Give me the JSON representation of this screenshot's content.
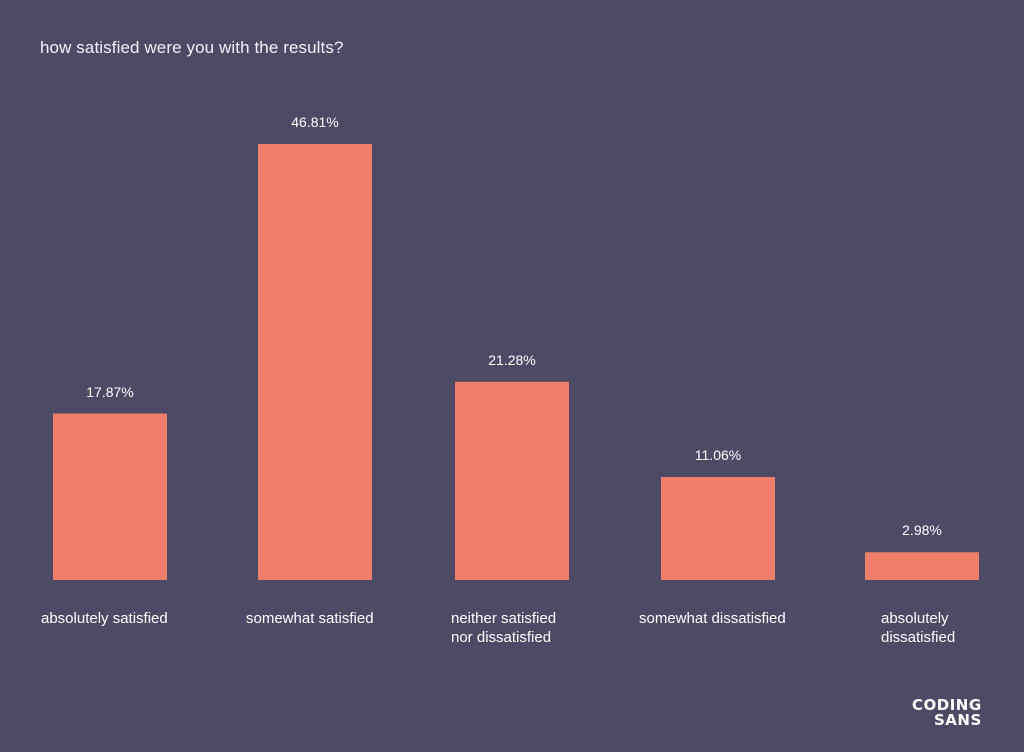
{
  "chart_data": {
    "type": "bar",
    "title": "how satisfied were you with the results?",
    "categories": [
      "absolutely satisfied",
      "somewhat satisfied",
      "neither satisfied\nnor dissatisfied",
      "somewhat dissatisfied",
      "absolutely\ndissatisfied"
    ],
    "values": [
      17.87,
      46.81,
      21.28,
      11.06,
      2.98
    ],
    "value_labels": [
      "17.87%",
      "46.81%",
      "21.28%",
      "11.06%",
      "2.98%"
    ],
    "xlabel": "",
    "ylabel": "",
    "ylim": [
      0,
      46.81
    ],
    "grid": false,
    "bar_color": "#ee7f6a"
  },
  "branding": {
    "logo_line1": "CODING",
    "logo_line2": "SANS",
    "accent_color": "#4fc3d8"
  },
  "colors": {
    "background": "#4d4a66",
    "text": "#ffffff"
  }
}
